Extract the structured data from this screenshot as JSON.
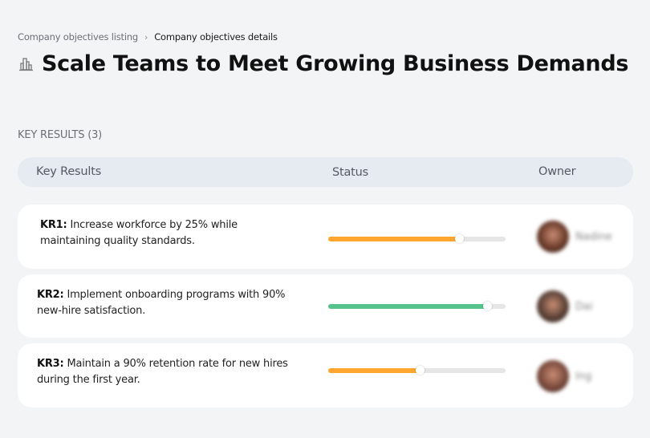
{
  "breadcrumb": {
    "parent": "Company objectives listing",
    "separator": "›",
    "current": "Company objectives details"
  },
  "page": {
    "title": "Scale Teams to Meet Growing Business Demands",
    "icon": "buildings-icon"
  },
  "section": {
    "label": "KEY RESULTS (3)"
  },
  "table": {
    "columns": {
      "key_results": "Key Results",
      "status": "Status",
      "owner": "Owner"
    },
    "rows": [
      {
        "id": "KR1:",
        "text": " Increase workforce by 25% while maintaining quality standards.",
        "progress": 74,
        "color": "#ffa630",
        "owner": "Nadine",
        "avatar_color": "#6b3b2a"
      },
      {
        "id": "KR2:",
        "text": " Implement onboarding programs with 90% new-hire satisfaction.",
        "progress": 90,
        "color": "#56c38d",
        "owner": "Dai",
        "avatar_color": "#5a4136"
      },
      {
        "id": "KR3:",
        "text": " Maintain a 90% retention rate for new hires during the first year.",
        "progress": 52,
        "color": "#ffa630",
        "owner": "Ing",
        "avatar_color": "#7a4a3c"
      }
    ]
  },
  "colors": {
    "background": "#f3f4f6",
    "header_bg": "#e6ebf2",
    "progress_orange": "#ffa630",
    "progress_green": "#56c38d",
    "track": "#e6e6e6"
  }
}
